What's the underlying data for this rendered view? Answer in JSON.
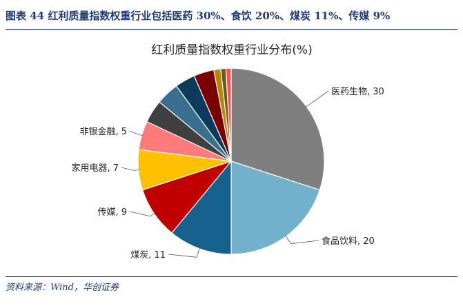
{
  "figure": {
    "title": "图表 44   红利质量指数权重行业包括医药 30%、食饮 20%、煤炭 11%、传媒 9%",
    "source": "资料来源：Wind，华创证券"
  },
  "colors": {
    "header": "#1f3a73",
    "leader_line": "#555555",
    "slice_border": "#ffffff"
  },
  "chart_data": {
    "type": "pie",
    "title": "红利质量指数权重行业分布(%)",
    "label_separator": ", ",
    "slices": [
      {
        "label": "医药生物",
        "value": 30,
        "color": "#7f7f7f",
        "show_label": true
      },
      {
        "label": "食品饮料",
        "value": 20,
        "color": "#72b0cb",
        "show_label": true
      },
      {
        "label": "煤炭",
        "value": 11,
        "color": "#17618f",
        "show_label": true
      },
      {
        "label": "传媒",
        "value": 9,
        "color": "#c00000",
        "show_label": true
      },
      {
        "label": "家用电器",
        "value": 7,
        "color": "#ffc000",
        "show_label": true
      },
      {
        "label": "非银金融",
        "value": 5,
        "color": "#ff7b7b",
        "show_label": true
      },
      {
        "label": "",
        "value": 4,
        "color": "#404040",
        "show_label": false
      },
      {
        "label": "",
        "value": 4,
        "color": "#3a6f8f",
        "show_label": false
      },
      {
        "label": "",
        "value": 3.5,
        "color": "#0e3a5c",
        "show_label": false
      },
      {
        "label": "",
        "value": 3.5,
        "color": "#7a0000",
        "show_label": false
      },
      {
        "label": "",
        "value": 1.2,
        "color": "#b8860b",
        "show_label": false
      },
      {
        "label": "",
        "value": 0.9,
        "color": "#6b5a1e",
        "show_label": false
      },
      {
        "label": "",
        "value": 0.9,
        "color": "#ff5050",
        "show_label": false
      }
    ]
  }
}
